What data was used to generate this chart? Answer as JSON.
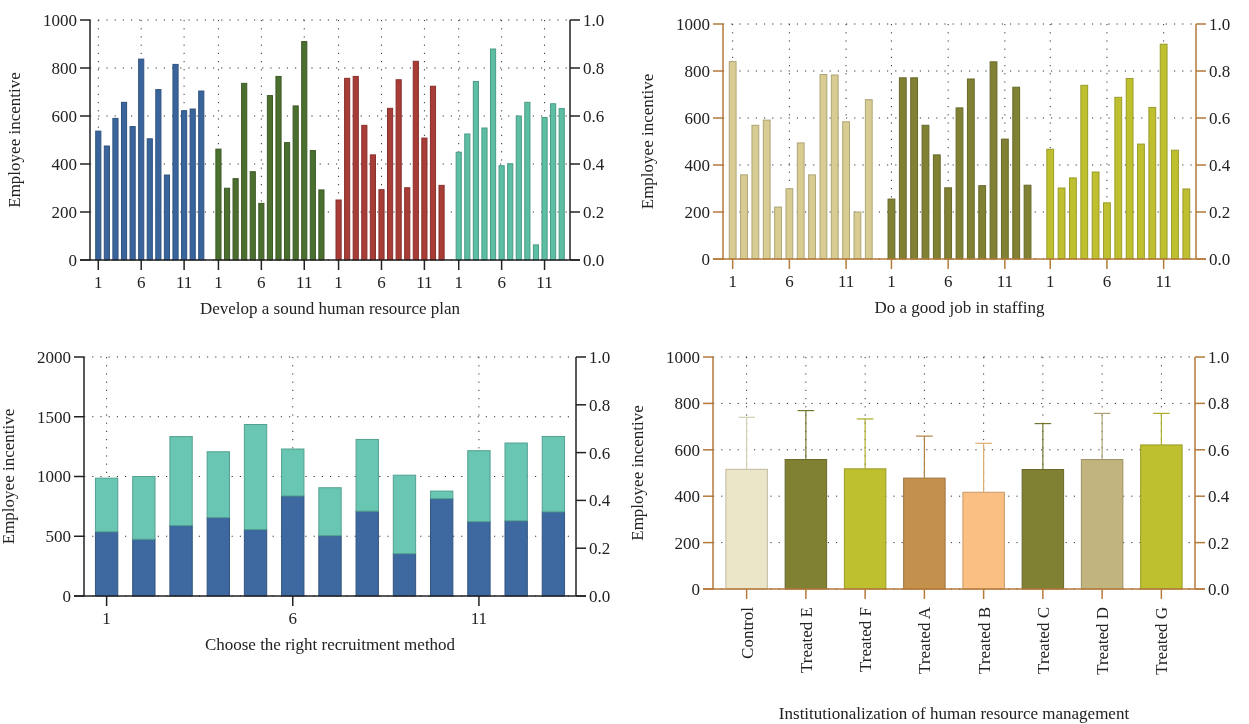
{
  "chart_data": [
    {
      "type": "bar",
      "xlabel": "Develop a sound human resource plan",
      "ylabel": "Employee incentive",
      "ylim": [
        0,
        1000
      ],
      "yticks": [
        0,
        200,
        400,
        600,
        800,
        1000
      ],
      "y2lim": [
        0,
        1
      ],
      "y2ticks": [
        {
          "value": 0,
          "label": "0.0"
        },
        {
          "value": 0.2,
          "label": "0.2"
        },
        {
          "value": 0.4,
          "label": "0.4"
        },
        {
          "value": 0.6,
          "label": "0.6"
        },
        {
          "value": 0.8,
          "label": "0.8"
        },
        {
          "value": 1,
          "label": "1.0"
        }
      ],
      "grid": true,
      "categories": [
        "1",
        null,
        null,
        null,
        null,
        "6",
        null,
        null,
        null,
        null,
        "11",
        null,
        null,
        null,
        "1",
        null,
        null,
        null,
        null,
        "6",
        null,
        null,
        null,
        null,
        "11",
        null,
        null,
        null,
        "1",
        null,
        null,
        null,
        null,
        "6",
        null,
        null,
        null,
        null,
        "11",
        null,
        null,
        null,
        "1",
        null,
        null,
        null,
        null,
        "6",
        null,
        null,
        null,
        null,
        "11",
        null,
        null
      ],
      "series": [
        {
          "color": "#3a659c",
          "values": [
            537,
            475,
            590,
            657,
            556,
            837,
            505,
            710,
            354,
            815,
            622,
            629,
            704,
            null,
            null,
            null,
            null,
            null,
            null,
            null,
            null,
            null,
            null,
            null,
            null,
            null,
            null,
            null,
            null,
            null,
            null,
            null,
            null,
            null,
            null,
            null,
            null,
            null,
            null,
            null,
            null,
            null,
            null,
            null,
            null,
            null,
            null,
            null,
            null,
            null,
            null,
            null,
            null,
            null,
            null
          ]
        },
        {
          "color": "#4b6f2f",
          "values": [
            null,
            null,
            null,
            null,
            null,
            null,
            null,
            null,
            null,
            null,
            null,
            null,
            null,
            null,
            462,
            299,
            339,
            736,
            368,
            236,
            685,
            765,
            489,
            642,
            910,
            456,
            292,
            null,
            null,
            null,
            null,
            null,
            null,
            null,
            null,
            null,
            null,
            null,
            null,
            null,
            null,
            null,
            null,
            null,
            null,
            null,
            null,
            null,
            null,
            null,
            null,
            null,
            null,
            null,
            null
          ]
        },
        {
          "color": "#a83c36",
          "values": [
            null,
            null,
            null,
            null,
            null,
            null,
            null,
            null,
            null,
            null,
            null,
            null,
            null,
            null,
            null,
            null,
            null,
            null,
            null,
            null,
            null,
            null,
            null,
            null,
            null,
            null,
            null,
            null,
            250,
            757,
            765,
            561,
            438,
            293,
            632,
            751,
            301,
            828,
            508,
            724,
            311,
            null,
            null,
            null,
            null,
            null,
            null,
            null,
            null,
            null,
            null,
            null,
            null,
            null,
            null
          ]
        },
        {
          "color": "#5cbfa4",
          "values": [
            null,
            null,
            null,
            null,
            null,
            null,
            null,
            null,
            null,
            null,
            null,
            null,
            null,
            null,
            null,
            null,
            null,
            null,
            null,
            null,
            null,
            null,
            null,
            null,
            null,
            null,
            null,
            null,
            null,
            null,
            null,
            null,
            null,
            null,
            null,
            null,
            null,
            null,
            null,
            null,
            null,
            null,
            449,
            525,
            744,
            550,
            879,
            393,
            401,
            600,
            657,
            63,
            594,
            651,
            631
          ]
        }
      ]
    },
    {
      "type": "bar",
      "xlabel": "Do a good job in staffing",
      "ylabel": "Employee incentive",
      "ylim": [
        0,
        1000
      ],
      "yticks": [
        0,
        200,
        400,
        600,
        800,
        1000
      ],
      "y2lim": [
        0,
        1
      ],
      "y2ticks": [
        {
          "value": 0,
          "label": "0.0"
        },
        {
          "value": 0.2,
          "label": "0.2"
        },
        {
          "value": 0.4,
          "label": "0.4"
        },
        {
          "value": 0.6,
          "label": "0.6"
        },
        {
          "value": 0.8,
          "label": "0.8"
        },
        {
          "value": 1,
          "label": "1.0"
        }
      ],
      "grid": true,
      "categories": [
        "1",
        null,
        null,
        null,
        null,
        "6",
        null,
        null,
        null,
        null,
        "11",
        null,
        null,
        null,
        "1",
        null,
        null,
        null,
        null,
        "6",
        null,
        null,
        null,
        null,
        "11",
        null,
        null,
        null,
        "1",
        null,
        null,
        null,
        null,
        "6",
        null,
        null,
        null,
        null,
        "11",
        null,
        null
      ],
      "series": [
        {
          "color": "#d8cc93",
          "values": [
            840,
            358,
            569,
            591,
            221,
            299,
            494,
            358,
            785,
            783,
            584,
            200,
            678,
            null,
            null,
            null,
            null,
            null,
            null,
            null,
            null,
            null,
            null,
            null,
            null,
            null,
            null,
            null,
            null,
            null,
            null,
            null,
            null,
            null,
            null,
            null,
            null,
            null,
            null,
            null,
            null
          ]
        },
        {
          "color": "#808133",
          "values": [
            null,
            null,
            null,
            null,
            null,
            null,
            null,
            null,
            null,
            null,
            null,
            null,
            null,
            null,
            255,
            771,
            771,
            569,
            443,
            303,
            643,
            766,
            312,
            839,
            510,
            731,
            314,
            null,
            null,
            null,
            null,
            null,
            null,
            null,
            null,
            null,
            null,
            null,
            null,
            null,
            null
          ]
        },
        {
          "color": "#bfc030",
          "values": [
            null,
            null,
            null,
            null,
            null,
            null,
            null,
            null,
            null,
            null,
            null,
            null,
            null,
            null,
            null,
            null,
            null,
            null,
            null,
            null,
            null,
            null,
            null,
            null,
            null,
            null,
            null,
            null,
            467,
            302,
            345,
            739,
            370,
            239,
            688,
            768,
            489,
            645,
            914,
            463,
            298
          ]
        }
      ]
    },
    {
      "type": "bar",
      "stacked": true,
      "xlabel": "Choose the right recruitment method",
      "ylabel": "Employee incentive",
      "ylim": [
        0,
        2000
      ],
      "yticks": [
        0,
        500,
        1000,
        1500,
        2000
      ],
      "y2lim": [
        0,
        1
      ],
      "y2ticks": [
        {
          "value": 0,
          "label": "0.0"
        },
        {
          "value": 0.2,
          "label": "0.2"
        },
        {
          "value": 0.4,
          "label": "0.4"
        },
        {
          "value": 0.6,
          "label": "0.6"
        },
        {
          "value": 0.8,
          "label": "0.8"
        },
        {
          "value": 1,
          "label": "1.0"
        }
      ],
      "grid": true,
      "categories": [
        "1",
        null,
        null,
        null,
        null,
        "6",
        null,
        null,
        null,
        null,
        "11",
        null,
        null
      ],
      "series": [
        {
          "color": "#3d69a0",
          "values": [
            537,
            475,
            590,
            657,
            556,
            837,
            505,
            710,
            354,
            815,
            622,
            629,
            704
          ]
        },
        {
          "color": "#68c6b2",
          "values": [
            449,
            525,
            744,
            550,
            879,
            393,
            401,
            600,
            657,
            63,
            594,
            651,
            631
          ]
        }
      ]
    },
    {
      "type": "bar",
      "xlabel": "Institutionalization of human resource management",
      "ylabel": "Employee incentive",
      "ylim": [
        0,
        1000
      ],
      "yticks": [
        0,
        200,
        400,
        600,
        800,
        1000
      ],
      "y2lim": [
        0,
        1
      ],
      "y2ticks": [
        {
          "value": 0,
          "label": "0.0"
        },
        {
          "value": 0.2,
          "label": "0.2"
        },
        {
          "value": 0.4,
          "label": "0.4"
        },
        {
          "value": 0.6,
          "label": "0.6"
        },
        {
          "value": 0.8,
          "label": "0.8"
        },
        {
          "value": 1,
          "label": "1.0"
        }
      ],
      "grid": true,
      "categories": [
        "Control",
        "Treated E",
        "Treated F",
        "Treated A",
        "Treated B",
        "Treated C",
        "Treated D",
        "Treated G"
      ],
      "values": [
        516,
        558,
        518,
        478,
        417,
        515,
        558,
        621
      ],
      "colors": [
        "#ece6c8",
        "#808133",
        "#bfc030",
        "#c4914d",
        "#f9bf83",
        "#808133",
        "#c2b47e",
        "#bfc030"
      ],
      "errors": [
        [
          516,
          740
        ],
        [
          558,
          769
        ],
        [
          518,
          733
        ],
        [
          478,
          659
        ],
        [
          417,
          628
        ],
        [
          515,
          713
        ],
        [
          558,
          757
        ],
        [
          621,
          757
        ]
      ]
    }
  ]
}
